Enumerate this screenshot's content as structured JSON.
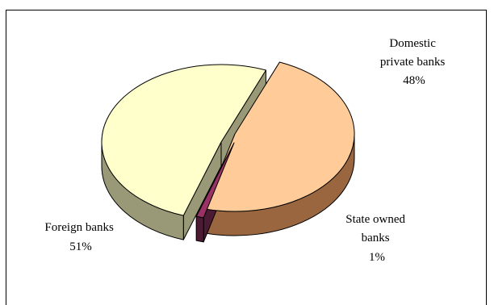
{
  "chart_data": {
    "type": "pie",
    "style": "3d-exploded",
    "title": "",
    "categories": [
      "Domestic private banks",
      "State owned banks",
      "Foreign banks"
    ],
    "values": [
      48,
      1,
      51
    ],
    "labels": [
      {
        "name": [
          "Domestic",
          "private banks"
        ],
        "pct": "48%"
      },
      {
        "name": [
          "State owned",
          "banks"
        ],
        "pct": "1%"
      },
      {
        "name": [
          "Foreign banks"
        ],
        "pct": "51%"
      }
    ],
    "colors": {
      "Domestic private banks": {
        "top": "#ffcc99",
        "side": "#99663f"
      },
      "State owned banks": {
        "top": "#993366",
        "side": "#4d1a33"
      },
      "Foreign banks": {
        "top": "#ffffcc",
        "side": "#999977"
      }
    }
  }
}
